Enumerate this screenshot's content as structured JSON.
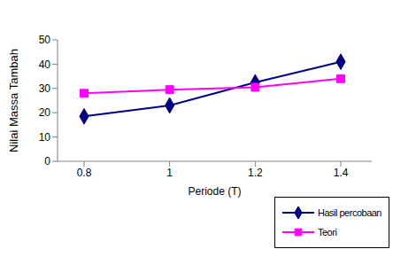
{
  "chart_data": {
    "type": "line",
    "x_label": "Periode (T)",
    "y_label": "Nilai Massa Tambah",
    "x": [
      0.8,
      1,
      1.2,
      1.4
    ],
    "series": [
      {
        "name": "Hasil percobaan",
        "color": "#000080",
        "marker": "diamond",
        "values": [
          18.5,
          23,
          32.5,
          41
        ]
      },
      {
        "name": "Teori",
        "color": "#ff00ff",
        "marker": "square",
        "values": [
          28,
          29.5,
          30.5,
          34
        ]
      }
    ],
    "ylim": [
      0,
      50
    ],
    "yticks": [
      0,
      10,
      20,
      30,
      40,
      50
    ],
    "grid": false,
    "legend": "bottom right"
  }
}
